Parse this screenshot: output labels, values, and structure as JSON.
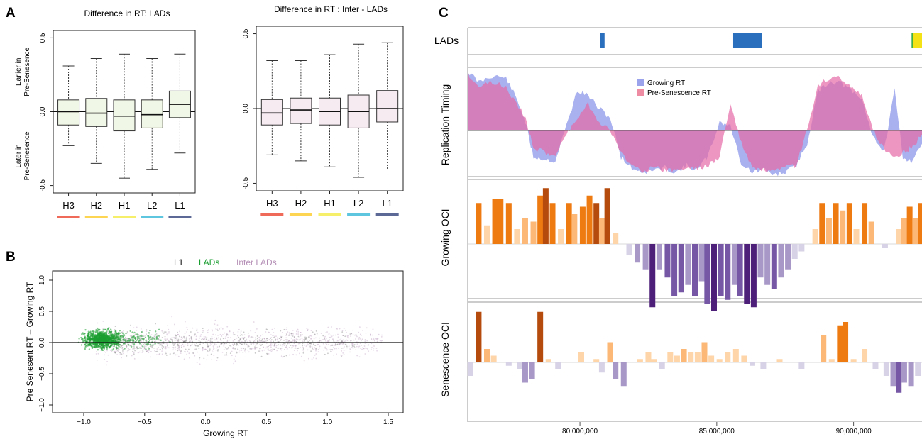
{
  "panels": {
    "a": "A",
    "b": "B",
    "c": "C"
  },
  "colors": {
    "H3": "#f06a5a",
    "H2": "#fdd552",
    "H1": "#f6ef6a",
    "L2": "#5ec6df",
    "L1": "#5c6896",
    "box_lads": "#f1f7e6",
    "box_inter": "#f7ebf2",
    "lads_bar": "#2a6ebe",
    "lads_yellow": "#f4e116",
    "lads_green": "#2ba84a",
    "growing_rt": "#9aa3ec",
    "presen_rt": "#ee8ca4",
    "overlap_rt": "#e46aa6",
    "orange_dark": "#b54b0c",
    "orange_mid": "#ee7a12",
    "orange_light": "#fbb877",
    "orange_pale": "#fdd5a8",
    "purple_dark": "#4e1f78",
    "purple_mid": "#7557a6",
    "purple_light": "#a898c8",
    "purple_pale": "#d8d2e6",
    "scatter_green": "#1b9e31",
    "scatter_pink": "#b58fb6",
    "scatter_gray": "#777777"
  },
  "chart_data": [
    {
      "type": "box",
      "title": "Difference in RT: LADs",
      "ylabel_top": [
        "Earlier in",
        "Pre-Senesence"
      ],
      "ylabel_bottom": [
        "Later in",
        "Pre-Senesence"
      ],
      "categories": [
        "H3",
        "H2",
        "H1",
        "L2",
        "L1"
      ],
      "ylim": [
        -0.55,
        0.55
      ],
      "yticks": [
        "-0.5",
        "0.0",
        "0.5"
      ],
      "boxes": [
        {
          "min": -0.23,
          "q1": -0.09,
          "median": 0.0,
          "q3": 0.08,
          "max": 0.31
        },
        {
          "min": -0.35,
          "q1": -0.1,
          "median": -0.01,
          "q3": 0.09,
          "max": 0.36
        },
        {
          "min": -0.45,
          "q1": -0.13,
          "median": -0.03,
          "q3": 0.08,
          "max": 0.39
        },
        {
          "min": -0.39,
          "q1": -0.11,
          "median": -0.02,
          "q3": 0.08,
          "max": 0.36
        },
        {
          "min": -0.28,
          "q1": -0.04,
          "median": 0.05,
          "q3": 0.14,
          "max": 0.39
        }
      ]
    },
    {
      "type": "box",
      "title": "Difference in RT : Inter - LADs",
      "categories": [
        "H3",
        "H2",
        "H1",
        "L2",
        "L1"
      ],
      "ylim": [
        -0.55,
        0.55
      ],
      "yticks": [
        "-0.5",
        "0.0",
        "0.5"
      ],
      "boxes": [
        {
          "min": -0.31,
          "q1": -0.11,
          "median": -0.03,
          "q3": 0.06,
          "max": 0.32
        },
        {
          "min": -0.35,
          "q1": -0.1,
          "median": -0.01,
          "q3": 0.07,
          "max": 0.32
        },
        {
          "min": -0.39,
          "q1": -0.11,
          "median": -0.02,
          "q3": 0.07,
          "max": 0.36
        },
        {
          "min": -0.46,
          "q1": -0.13,
          "median": -0.02,
          "q3": 0.09,
          "max": 0.43
        },
        {
          "min": -0.41,
          "q1": -0.09,
          "median": 0.0,
          "q3": 0.12,
          "max": 0.44
        }
      ]
    },
    {
      "type": "scatter",
      "xlabel": "Growing RT",
      "ylabel": "Pre Senesent RT  –  Growing RT",
      "xlim": [
        -1.3,
        1.6
      ],
      "ylim": [
        -1.1,
        1.1
      ],
      "xticks": [
        "−1.0",
        "−0.5",
        "0.0",
        "0.5",
        "1.0",
        "1.5"
      ],
      "yticks": [
        "−1.0",
        "−0.5",
        "0.0",
        "0.5",
        "1.0"
      ],
      "legend": [
        "L1",
        "LADs",
        "Inter LADs"
      ],
      "series": [
        {
          "name": "LADs",
          "center": [
            -0.85,
            0.05
          ],
          "spread": [
            0.09,
            0.07
          ]
        },
        {
          "name": "Inter LADs",
          "range_x": [
            -0.9,
            1.45
          ],
          "spread_y": 0.12
        },
        {
          "name": "L1",
          "range_x": [
            -0.7,
            1.3
          ],
          "spread_y": 0.1
        }
      ]
    },
    {
      "type": "genome_tracks",
      "tracks": [
        "LADs",
        "Replication Timing",
        "Growing OCI",
        "Senescence OCI"
      ],
      "xlim": [
        75900000,
        92500000
      ],
      "xticks": [
        "80,000,000",
        "85,000,000",
        "90,000,000"
      ],
      "lads": [
        {
          "start": 80750000,
          "end": 80900000,
          "color": "blue"
        },
        {
          "start": 85600000,
          "end": 86650000,
          "color": "blue"
        },
        {
          "start": 92120000,
          "end": 92160000,
          "color": "green"
        },
        {
          "start": 92160000,
          "end": 92500000,
          "color": "yellow"
        }
      ],
      "rt_legend": [
        "Growing RT",
        "Pre-Senescence RT"
      ],
      "rt_x": [
        75900000,
        76300000,
        76800000,
        77300000,
        77700000,
        78000000,
        78300000,
        78700000,
        79100000,
        79500000,
        79900000,
        80300000,
        80700000,
        81100000,
        81500000,
        81900000,
        82300000,
        82700000,
        83100000,
        83500000,
        83900000,
        84300000,
        84700000,
        85100000,
        85500000,
        85900000,
        86300000,
        86700000,
        87100000,
        87500000,
        87900000,
        88300000,
        88700000,
        89100000,
        89500000,
        89900000,
        90300000,
        90700000,
        91100000,
        91500000,
        91800000,
        92100000,
        92500000
      ],
      "growing_rt": [
        1.35,
        1.1,
        1.25,
        1.2,
        0.7,
        0.2,
        -0.6,
        -0.65,
        -0.7,
        0.1,
        0.9,
        0.8,
        0.5,
        0.3,
        -0.6,
        -0.85,
        -0.95,
        -0.9,
        -0.85,
        -0.95,
        -0.8,
        -0.9,
        -0.55,
        0.2,
        0.1,
        -0.75,
        -0.95,
        -0.9,
        -1.0,
        -0.95,
        -0.8,
        -0.3,
        0.9,
        1.1,
        1.1,
        0.9,
        0.7,
        -0.1,
        -0.5,
        0.9,
        -0.6,
        -0.7,
        -0.3
      ],
      "presen_rt": [
        1.3,
        1.0,
        1.1,
        1.0,
        0.6,
        0.3,
        -0.4,
        -0.5,
        -0.55,
        -0.1,
        0.3,
        0.6,
        0.2,
        0.0,
        -0.5,
        -0.8,
        -0.9,
        -0.85,
        -0.9,
        -0.9,
        -0.85,
        -0.85,
        -0.8,
        -0.6,
        0.6,
        -0.3,
        -0.85,
        -0.9,
        -0.95,
        -0.85,
        -0.8,
        0.0,
        1.0,
        1.2,
        1.2,
        1.0,
        0.8,
        0.0,
        -0.4,
        -0.6,
        -0.5,
        -0.4,
        -0.1
      ],
      "growing_oci": [
        {
          "x": 76300000,
          "v": 0.55,
          "t": "mid"
        },
        {
          "x": 76600000,
          "v": 0.25,
          "t": "pale"
        },
        {
          "x": 76900000,
          "v": 0.6,
          "t": "mid"
        },
        {
          "x": 77100000,
          "v": 0.6,
          "t": "mid"
        },
        {
          "x": 77400000,
          "v": 0.55,
          "t": "mid"
        },
        {
          "x": 77700000,
          "v": 0.2,
          "t": "pale"
        },
        {
          "x": 78000000,
          "v": 0.35,
          "t": "light"
        },
        {
          "x": 78300000,
          "v": 0.3,
          "t": "light"
        },
        {
          "x": 78550000,
          "v": 0.65,
          "t": "mid"
        },
        {
          "x": 78750000,
          "v": 0.75,
          "t": "dark"
        },
        {
          "x": 79000000,
          "v": 0.55,
          "t": "mid"
        },
        {
          "x": 79300000,
          "v": 0.2,
          "t": "pale"
        },
        {
          "x": 79600000,
          "v": 0.55,
          "t": "mid"
        },
        {
          "x": 79800000,
          "v": 0.4,
          "t": "light"
        },
        {
          "x": 80100000,
          "v": 0.5,
          "t": "mid"
        },
        {
          "x": 80350000,
          "v": 0.65,
          "t": "mid"
        },
        {
          "x": 80600000,
          "v": 0.55,
          "t": "dark"
        },
        {
          "x": 80800000,
          "v": 0.35,
          "t": "light"
        },
        {
          "x": 81000000,
          "v": 0.75,
          "t": "dark"
        },
        {
          "x": 81300000,
          "v": 0.15,
          "t": "pale"
        },
        {
          "x": 81800000,
          "v": -0.15,
          "t": "pale"
        },
        {
          "x": 82100000,
          "v": -0.25,
          "t": "light"
        },
        {
          "x": 82400000,
          "v": -0.35,
          "t": "light"
        },
        {
          "x": 82650000,
          "v": -0.85,
          "t": "dark"
        },
        {
          "x": 82900000,
          "v": -0.35,
          "t": "light"
        },
        {
          "x": 83200000,
          "v": -0.45,
          "t": "mid"
        },
        {
          "x": 83450000,
          "v": -0.7,
          "t": "mid"
        },
        {
          "x": 83700000,
          "v": -0.65,
          "t": "mid"
        },
        {
          "x": 83950000,
          "v": -0.55,
          "t": "light"
        },
        {
          "x": 84200000,
          "v": -0.7,
          "t": "mid"
        },
        {
          "x": 84450000,
          "v": -0.5,
          "t": "light"
        },
        {
          "x": 84650000,
          "v": -0.8,
          "t": "mid"
        },
        {
          "x": 84900000,
          "v": -0.9,
          "t": "dark"
        },
        {
          "x": 85150000,
          "v": -0.7,
          "t": "mid"
        },
        {
          "x": 85400000,
          "v": -0.75,
          "t": "mid"
        },
        {
          "x": 85650000,
          "v": -0.55,
          "t": "light"
        },
        {
          "x": 85850000,
          "v": -0.7,
          "t": "mid"
        },
        {
          "x": 86100000,
          "v": -0.8,
          "t": "dark"
        },
        {
          "x": 86350000,
          "v": -0.85,
          "t": "dark"
        },
        {
          "x": 86600000,
          "v": -0.45,
          "t": "light"
        },
        {
          "x": 86850000,
          "v": -0.55,
          "t": "light"
        },
        {
          "x": 87100000,
          "v": -0.6,
          "t": "mid"
        },
        {
          "x": 87350000,
          "v": -0.45,
          "t": "light"
        },
        {
          "x": 87600000,
          "v": -0.35,
          "t": "light"
        },
        {
          "x": 87850000,
          "v": -0.2,
          "t": "pale"
        },
        {
          "x": 88100000,
          "v": -0.1,
          "t": "pale"
        },
        {
          "x": 88600000,
          "v": 0.2,
          "t": "pale"
        },
        {
          "x": 88850000,
          "v": 0.55,
          "t": "mid"
        },
        {
          "x": 89100000,
          "v": 0.35,
          "t": "light"
        },
        {
          "x": 89350000,
          "v": 0.55,
          "t": "mid"
        },
        {
          "x": 89600000,
          "v": 0.45,
          "t": "light"
        },
        {
          "x": 89850000,
          "v": 0.55,
          "t": "mid"
        },
        {
          "x": 90100000,
          "v": 0.2,
          "t": "pale"
        },
        {
          "x": 90400000,
          "v": 0.55,
          "t": "mid"
        },
        {
          "x": 90650000,
          "v": 0.3,
          "t": "light"
        },
        {
          "x": 91150000,
          "v": -0.05,
          "t": "pale"
        },
        {
          "x": 91650000,
          "v": 0.2,
          "t": "pale"
        },
        {
          "x": 91850000,
          "v": 0.35,
          "t": "light"
        },
        {
          "x": 92050000,
          "v": 0.5,
          "t": "mid"
        },
        {
          "x": 92250000,
          "v": 0.35,
          "t": "light"
        },
        {
          "x": 92450000,
          "v": 0.55,
          "t": "mid"
        }
      ],
      "senescence_oci": [
        {
          "x": 76300000,
          "v": 0.75,
          "t": "dark"
        },
        {
          "x": 76600000,
          "v": 0.2,
          "t": "light"
        },
        {
          "x": 76850000,
          "v": 0.1,
          "t": "pale"
        },
        {
          "x": 76000000,
          "v": -0.2,
          "t": "pale"
        },
        {
          "x": 77400000,
          "v": -0.05,
          "t": "pale"
        },
        {
          "x": 77800000,
          "v": -0.1,
          "t": "pale"
        },
        {
          "x": 78000000,
          "v": -0.3,
          "t": "light"
        },
        {
          "x": 78250000,
          "v": -0.25,
          "t": "light"
        },
        {
          "x": 78550000,
          "v": 0.75,
          "t": "dark"
        },
        {
          "x": 78850000,
          "v": 0.05,
          "t": "pale"
        },
        {
          "x": 79200000,
          "v": -0.1,
          "t": "pale"
        },
        {
          "x": 80050000,
          "v": 0.15,
          "t": "pale"
        },
        {
          "x": 80600000,
          "v": 0.05,
          "t": "pale"
        },
        {
          "x": 80800000,
          "v": -0.15,
          "t": "pale"
        },
        {
          "x": 81100000,
          "v": 0.3,
          "t": "light"
        },
        {
          "x": 81300000,
          "v": -0.25,
          "t": "light"
        },
        {
          "x": 81600000,
          "v": -0.35,
          "t": "light"
        },
        {
          "x": 82200000,
          "v": 0.05,
          "t": "pale"
        },
        {
          "x": 82500000,
          "v": 0.15,
          "t": "pale"
        },
        {
          "x": 82700000,
          "v": 0.05,
          "t": "pale"
        },
        {
          "x": 83000000,
          "v": -0.1,
          "t": "pale"
        },
        {
          "x": 83300000,
          "v": 0.15,
          "t": "pale"
        },
        {
          "x": 83550000,
          "v": 0.1,
          "t": "pale"
        },
        {
          "x": 83800000,
          "v": 0.2,
          "t": "light"
        },
        {
          "x": 84050000,
          "v": 0.15,
          "t": "pale"
        },
        {
          "x": 84300000,
          "v": 0.15,
          "t": "pale"
        },
        {
          "x": 84550000,
          "v": 0.3,
          "t": "light"
        },
        {
          "x": 84800000,
          "v": 0.1,
          "t": "pale"
        },
        {
          "x": 85100000,
          "v": 0.05,
          "t": "pale"
        },
        {
          "x": 85400000,
          "v": 0.15,
          "t": "pale"
        },
        {
          "x": 85700000,
          "v": 0.2,
          "t": "pale"
        },
        {
          "x": 86000000,
          "v": 0.1,
          "t": "pale"
        },
        {
          "x": 86300000,
          "v": -0.05,
          "t": "pale"
        },
        {
          "x": 86700000,
          "v": -0.1,
          "t": "pale"
        },
        {
          "x": 87300000,
          "v": 0.05,
          "t": "pale"
        },
        {
          "x": 88100000,
          "v": -0.1,
          "t": "pale"
        },
        {
          "x": 88900000,
          "v": 0.4,
          "t": "light"
        },
        {
          "x": 89200000,
          "v": 0.05,
          "t": "pale"
        },
        {
          "x": 89500000,
          "v": 0.55,
          "t": "mid"
        },
        {
          "x": 89700000,
          "v": 0.6,
          "t": "mid"
        },
        {
          "x": 90000000,
          "v": 0.05,
          "t": "pale"
        },
        {
          "x": 90400000,
          "v": 0.2,
          "t": "pale"
        },
        {
          "x": 90800000,
          "v": -0.1,
          "t": "pale"
        },
        {
          "x": 91200000,
          "v": -0.2,
          "t": "pale"
        },
        {
          "x": 91450000,
          "v": -0.35,
          "t": "light"
        },
        {
          "x": 91650000,
          "v": -0.45,
          "t": "mid"
        },
        {
          "x": 91850000,
          "v": -0.3,
          "t": "light"
        },
        {
          "x": 92100000,
          "v": -0.35,
          "t": "light"
        },
        {
          "x": 92350000,
          "v": -0.2,
          "t": "pale"
        }
      ]
    }
  ]
}
